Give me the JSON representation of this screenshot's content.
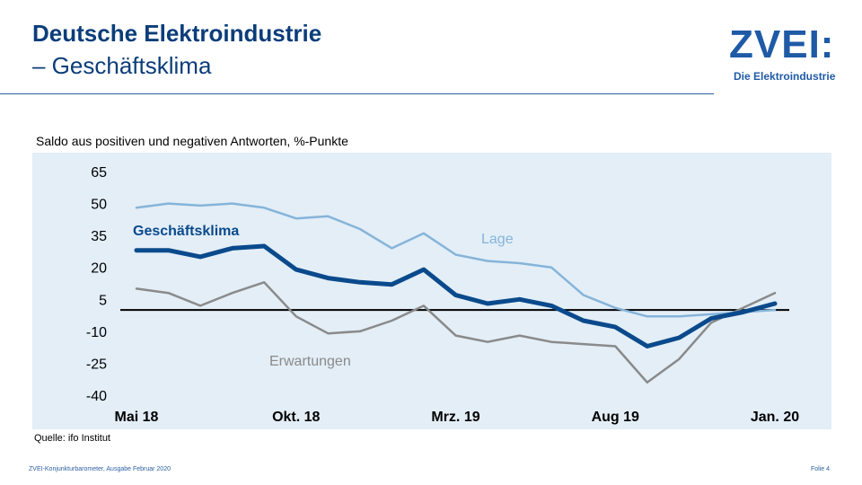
{
  "header": {
    "title_line1": "Deutsche Elektroindustrie",
    "title_line2": "– Geschäftsklima"
  },
  "logo": {
    "text": "ZVEI:",
    "subtitle": "Die Elektroindustrie"
  },
  "footer": {
    "source": "Quelle: ifo Institut",
    "left": "ZVEI-Konjunkturbarometer, Ausgabe Februar 2020",
    "right": "Folie 4"
  },
  "colors": {
    "geschaeftsklima": "#0a4a8c",
    "lage": "#86b4d9",
    "erwartungen": "#8a8a8a",
    "zero_line": "#000000",
    "panel": "#e3eef7"
  },
  "chart_data": {
    "type": "line",
    "title": "",
    "subtitle": "Saldo aus positiven und negativen Antworten, %-Punkte",
    "xlabel": "",
    "ylabel": "",
    "ylim": [
      -40,
      65
    ],
    "yticks": [
      65,
      50,
      35,
      20,
      5,
      -10,
      -25,
      -40
    ],
    "x": [
      "Mai 18",
      "Jun 18",
      "Jul 18",
      "Aug 18",
      "Sep 18",
      "Okt. 18",
      "Nov 18",
      "Dez 18",
      "Jan 19",
      "Feb 19",
      "Mrz. 19",
      "Apr 19",
      "Mai 19",
      "Jun 19",
      "Jul 19",
      "Aug 19",
      "Sep 19",
      "Okt 19",
      "Nov 19",
      "Dez 19",
      "Jan. 20"
    ],
    "xtick_labels": [
      {
        "index": 0,
        "label": "Mai 18"
      },
      {
        "index": 5,
        "label": "Okt. 18"
      },
      {
        "index": 10,
        "label": "Mrz. 19"
      },
      {
        "index": 15,
        "label": "Aug 19"
      },
      {
        "index": 20,
        "label": "Jan. 20"
      }
    ],
    "zero_line": 0,
    "grid": false,
    "series": [
      {
        "name": "Lage",
        "key": "lage",
        "values": [
          48,
          50,
          49,
          50,
          48,
          43,
          44,
          38,
          29,
          36,
          26,
          23,
          22,
          20,
          7,
          1,
          -3,
          -3,
          -2,
          -1,
          0
        ]
      },
      {
        "name": "Geschäftsklima",
        "key": "geschaeftsklima",
        "values": [
          28,
          28,
          25,
          29,
          30,
          19,
          15,
          13,
          12,
          19,
          7,
          3,
          5,
          2,
          -5,
          -8,
          -17,
          -13,
          -4,
          -1,
          3
        ]
      },
      {
        "name": "Erwartungen",
        "key": "erwartungen",
        "values": [
          10,
          8,
          2,
          8,
          13,
          -3,
          -11,
          -10,
          -5,
          2,
          -12,
          -15,
          -12,
          -15,
          -16,
          -17,
          -34,
          -23,
          -6,
          1,
          8
        ]
      }
    ],
    "series_labels": [
      {
        "key": "geschaeftsklima",
        "text": "Geschäftsklima"
      },
      {
        "key": "lage",
        "text": "Lage"
      },
      {
        "key": "erwartungen",
        "text": "Erwartungen"
      }
    ]
  }
}
